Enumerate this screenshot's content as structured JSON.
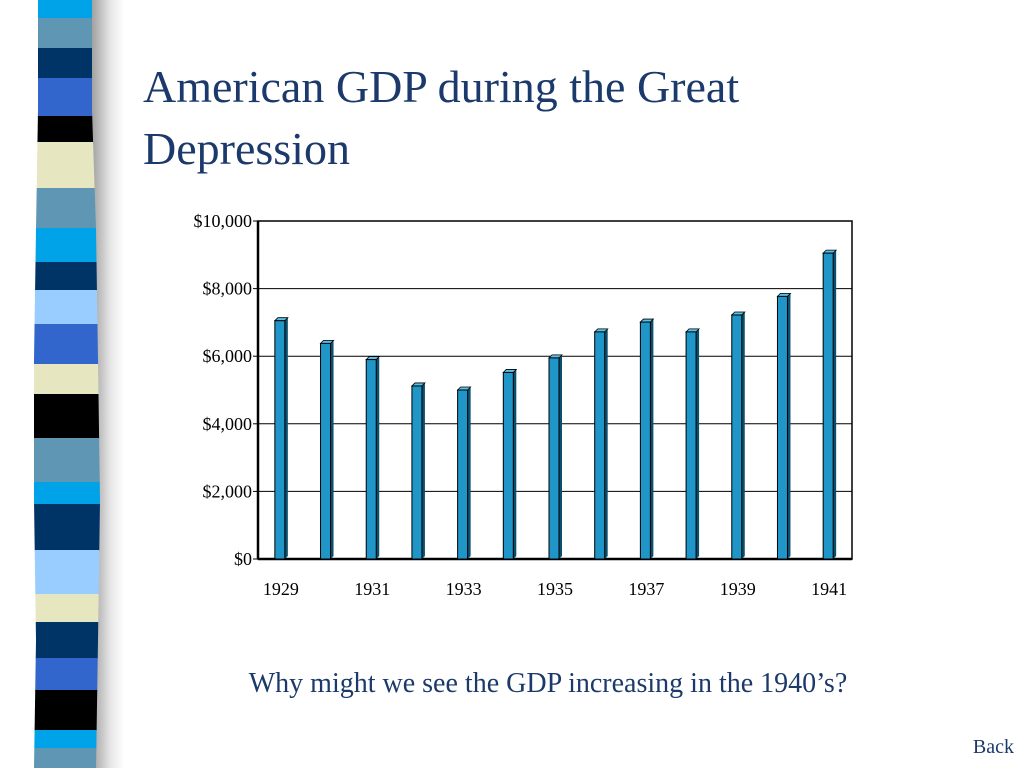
{
  "slide": {
    "title": "American GDP during the Great Depression",
    "question": "Why might we see the GDP increasing in the 1940’s?",
    "back_label": "Back"
  },
  "colors": {
    "title_text": "#1b3a6b",
    "bar_fill": "#1f95c8",
    "bar_top": "#5bbfe6",
    "bar_shadow": "#0b4f6e",
    "stripe_palette": [
      "#00a2e8",
      "#5e96b4",
      "#003366",
      "#3366cc",
      "#000000",
      "#e6e6c0",
      "#99ccff"
    ]
  },
  "chart_data": {
    "type": "bar",
    "categories": [
      "1929",
      "1930",
      "1931",
      "1932",
      "1933",
      "1934",
      "1935",
      "1936",
      "1937",
      "1938",
      "1939",
      "1940",
      "1941"
    ],
    "x_tick_labels": [
      "1929",
      "1931",
      "1933",
      "1935",
      "1937",
      "1939",
      "1941"
    ],
    "values": [
      7050,
      6380,
      5900,
      5120,
      5000,
      5520,
      5950,
      6720,
      7010,
      6720,
      7220,
      7770,
      9050
    ],
    "ylim": [
      0,
      10000
    ],
    "y_ticks": [
      0,
      2000,
      4000,
      6000,
      8000,
      10000
    ],
    "y_tick_labels": [
      "$0",
      "$2,000",
      "$4,000",
      "$6,000",
      "$8,000",
      "$10,000"
    ],
    "grid": true,
    "legend": false
  }
}
